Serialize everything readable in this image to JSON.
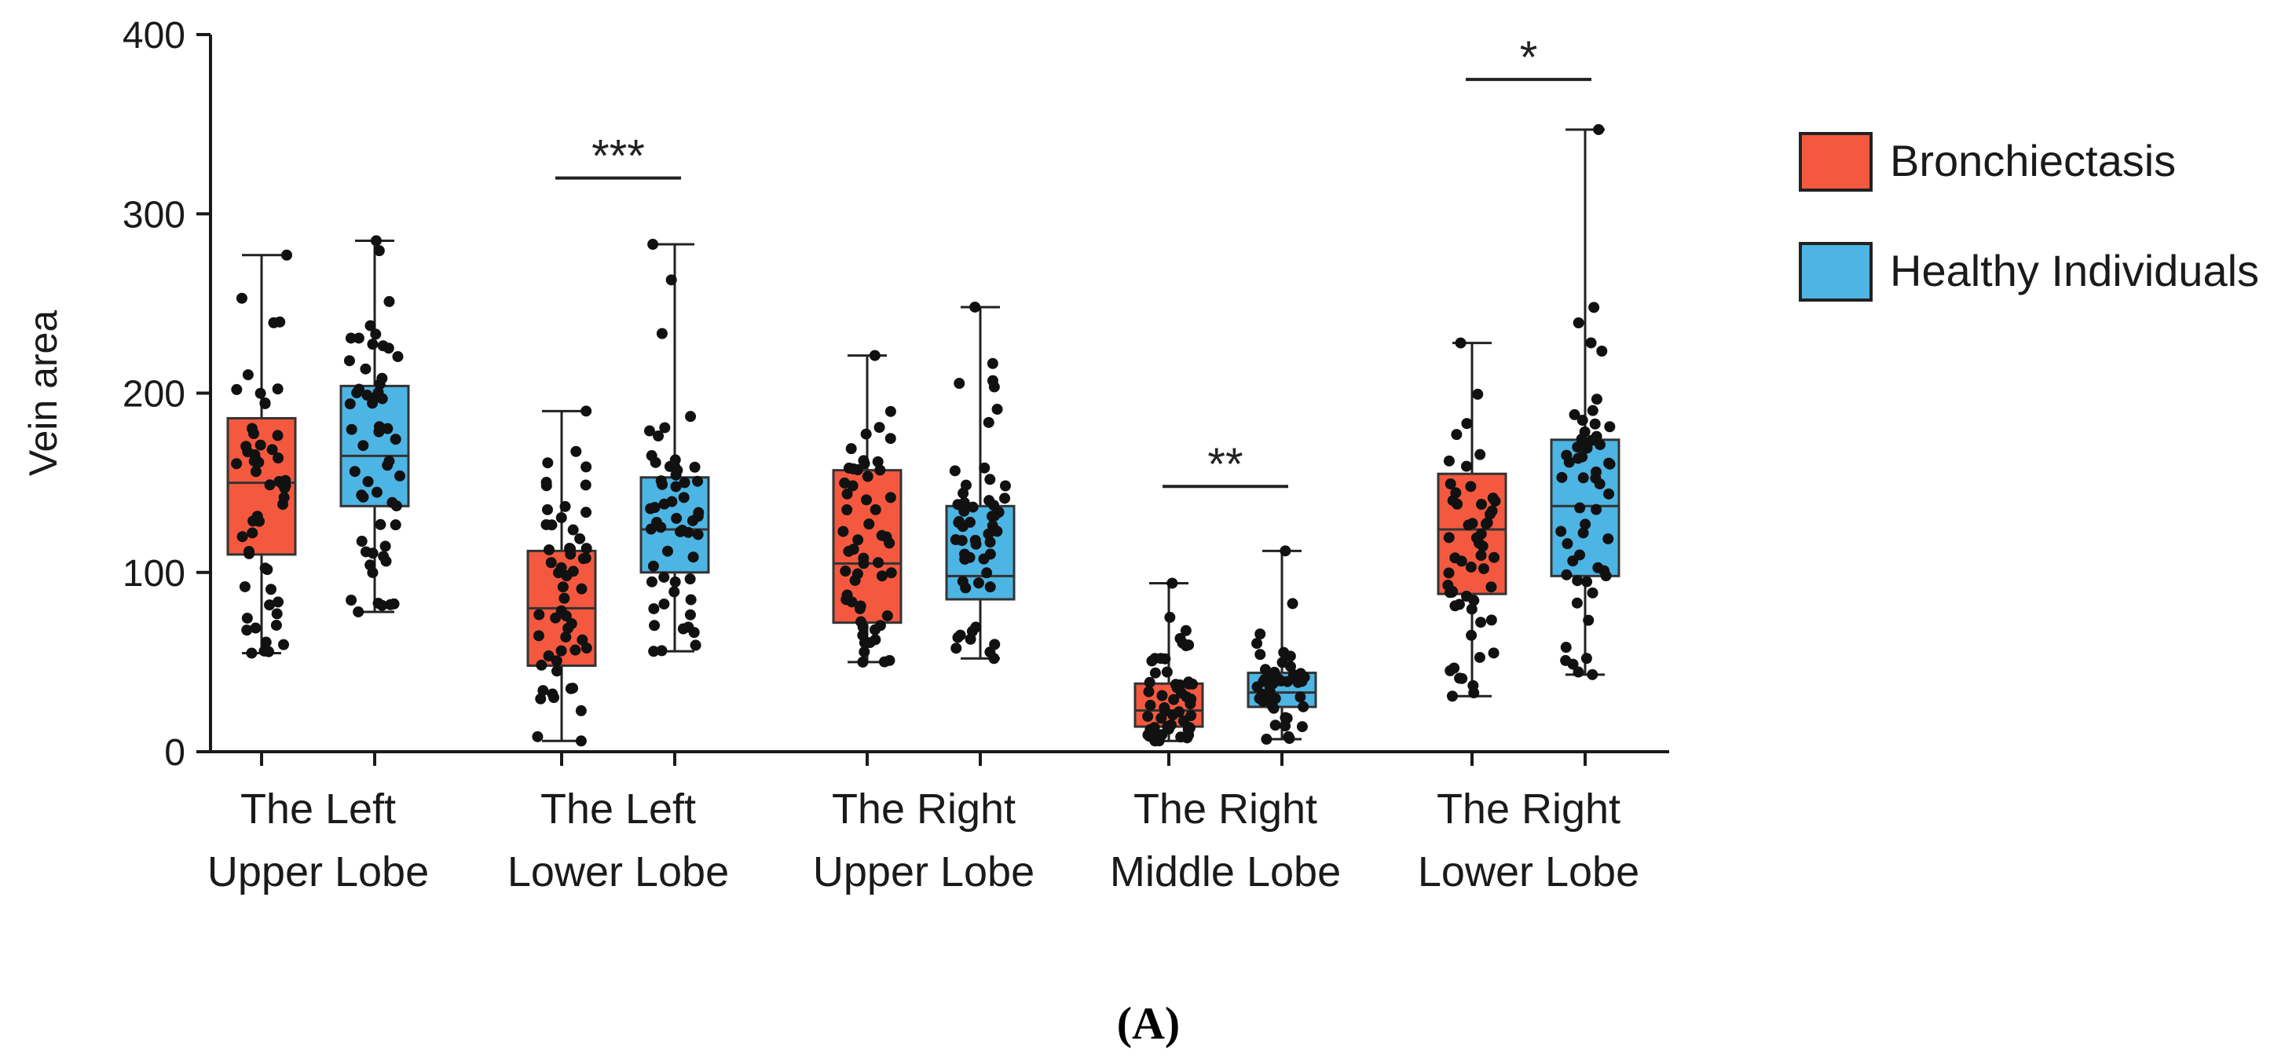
{
  "chart_data": {
    "type": "box",
    "ylabel": "Vein area",
    "ylim": [
      0,
      400
    ],
    "yticks": [
      0,
      100,
      200,
      300,
      400
    ],
    "categories": [
      [
        "The Left",
        "Upper Lobe"
      ],
      [
        "The Left",
        "Lower Lobe"
      ],
      [
        "The Right",
        "Upper Lobe"
      ],
      [
        "The Right",
        "Middle Lobe"
      ],
      [
        "The Right",
        "Lower Lobe"
      ]
    ],
    "legend_position": "right",
    "series": [
      {
        "name": "Bronchiectasis",
        "color": "#f4593f",
        "boxes": [
          {
            "min": 55,
            "q1": 110,
            "median": 150,
            "q3": 186,
            "max": 277
          },
          {
            "min": 6,
            "q1": 48,
            "median": 80,
            "q3": 112,
            "max": 190
          },
          {
            "min": 50,
            "q1": 72,
            "median": 105,
            "q3": 157,
            "max": 221
          },
          {
            "min": 6,
            "q1": 14,
            "median": 23,
            "q3": 38,
            "max": 94
          },
          {
            "min": 31,
            "q1": 88,
            "median": 124,
            "q3": 155,
            "max": 228
          }
        ]
      },
      {
        "name": "Healthy Individuals",
        "color": "#4db5e4",
        "boxes": [
          {
            "min": 78,
            "q1": 137,
            "median": 165,
            "q3": 204,
            "max": 285
          },
          {
            "min": 56,
            "q1": 100,
            "median": 124,
            "q3": 153,
            "max": 283
          },
          {
            "min": 52,
            "q1": 85,
            "median": 98,
            "q3": 137,
            "max": 248
          },
          {
            "min": 7,
            "q1": 25,
            "median": 33,
            "q3": 44,
            "max": 112
          },
          {
            "min": 43,
            "q1": 98,
            "median": 137,
            "q3": 174,
            "max": 347
          }
        ]
      }
    ],
    "annotations": [
      {
        "category": 1,
        "label": "***",
        "y": 320
      },
      {
        "category": 3,
        "label": "**",
        "y": 148
      },
      {
        "category": 4,
        "label": "*",
        "y": 375
      }
    ]
  },
  "panel_label": "(A)"
}
